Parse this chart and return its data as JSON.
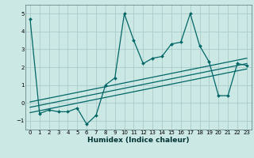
{
  "title": "",
  "xlabel": "Humidex (Indice chaleur)",
  "ylabel": "",
  "background_color": "#cce8e4",
  "grid_color": "#aacccc",
  "line_color": "#006666",
  "xlim": [
    -0.5,
    23.5
  ],
  "ylim": [
    -1.5,
    5.5
  ],
  "yticks": [
    -1,
    0,
    1,
    2,
    3,
    4,
    5
  ],
  "xticks": [
    0,
    1,
    2,
    3,
    4,
    5,
    6,
    7,
    8,
    9,
    10,
    11,
    12,
    13,
    14,
    15,
    16,
    17,
    18,
    19,
    20,
    21,
    22,
    23
  ],
  "main_x": [
    0,
    1,
    2,
    3,
    4,
    5,
    6,
    7,
    8,
    9,
    10,
    11,
    12,
    13,
    14,
    15,
    16,
    17,
    18,
    19,
    20,
    21,
    22,
    23
  ],
  "main_y": [
    4.7,
    -0.6,
    -0.4,
    -0.5,
    -0.5,
    -0.3,
    -1.2,
    -0.7,
    1.0,
    1.4,
    5.0,
    3.5,
    2.2,
    2.5,
    2.6,
    3.3,
    3.4,
    5.0,
    3.2,
    2.3,
    0.4,
    0.4,
    2.2,
    2.1
  ],
  "reg_line1_x": [
    0,
    23
  ],
  "reg_line1_y": [
    -0.55,
    1.9
  ],
  "reg_line2_x": [
    0,
    23
  ],
  "reg_line2_y": [
    -0.25,
    2.2
  ],
  "reg_line3_x": [
    0,
    23
  ],
  "reg_line3_y": [
    0.05,
    2.5
  ]
}
